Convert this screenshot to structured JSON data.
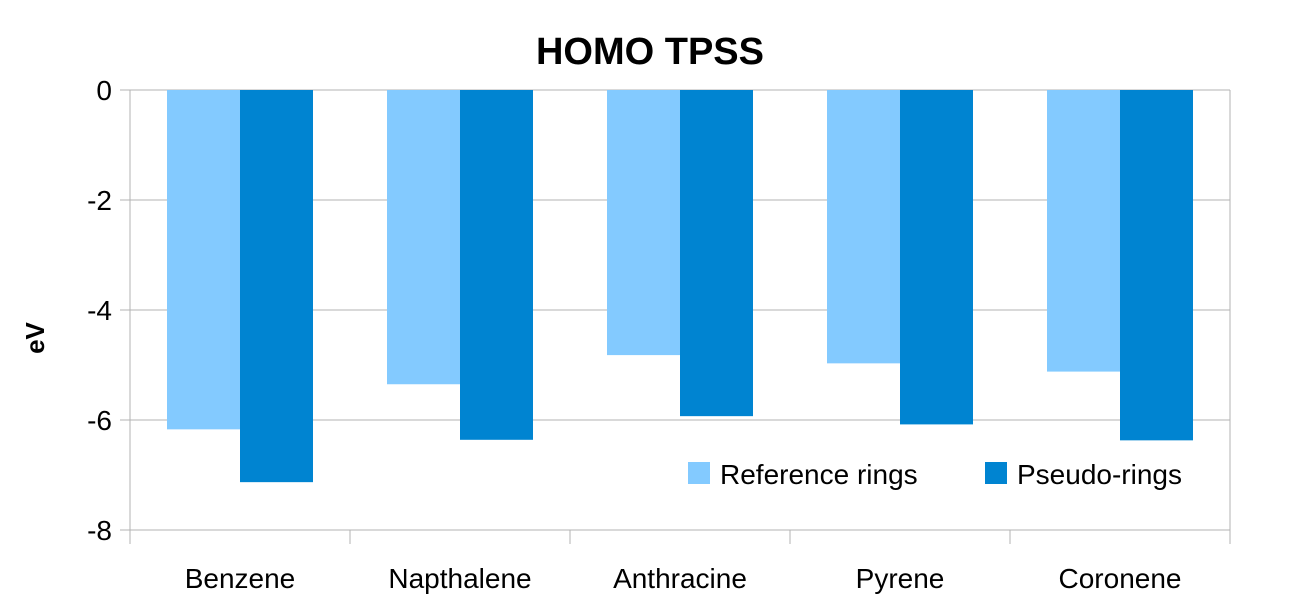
{
  "chart_data": {
    "type": "bar",
    "title": "HOMO TPSS",
    "xlabel": "",
    "ylabel": "eV",
    "categories": [
      "Benzene",
      "Napthalene",
      "Anthracine",
      "Pyrene",
      "Coronene"
    ],
    "series": [
      {
        "name": "Reference rings",
        "color": "#83caff",
        "values": [
          -6.17,
          -5.35,
          -4.82,
          -4.97,
          -5.12
        ]
      },
      {
        "name": "Pseudo-rings",
        "color": "#0084d1",
        "values": [
          -7.13,
          -6.36,
          -5.93,
          -6.08,
          -6.37
        ]
      }
    ],
    "ylim": [
      -8,
      0
    ],
    "yticks": [
      0,
      -2,
      -4,
      -6,
      -8
    ],
    "grid": true,
    "legend_position": "bottom-right"
  }
}
